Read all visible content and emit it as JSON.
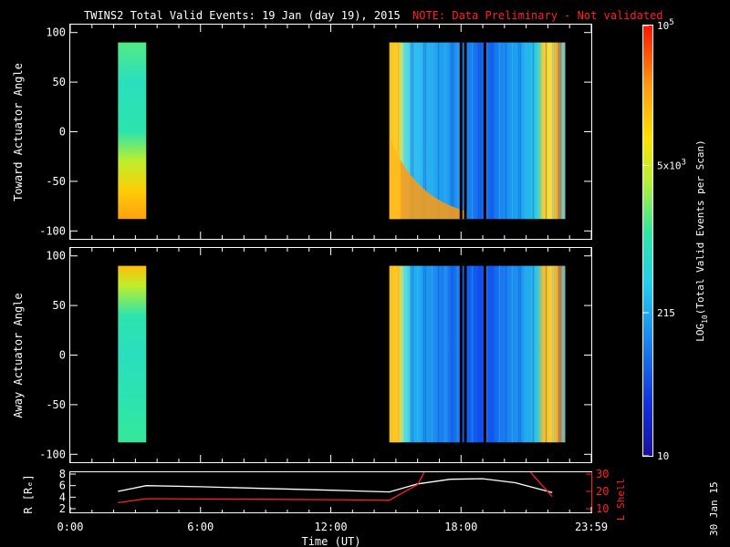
{
  "title": {
    "main": "TWINS2  Total Valid Events: 19 Jan (day  19), 2015",
    "note": "NOTE: Data Preliminary - Not validated"
  },
  "chart_data": [
    {
      "type": "heatmap",
      "panel": "top",
      "ylabel": "Toward Actuator Angle",
      "ylim": [
        -108,
        108
      ],
      "yticks": [
        {
          "v": 100,
          "label": "100"
        },
        {
          "v": 50,
          "label": "50"
        },
        {
          "v": 0,
          "label": "0"
        },
        {
          "v": -50,
          "label": "-50"
        },
        {
          "v": -100,
          "label": "-100"
        }
      ],
      "xlim": [
        0,
        24
      ],
      "angle_range": [
        -88,
        90
      ],
      "data_blocks": [
        {
          "start_hour": 2.2,
          "end_hour": 3.5,
          "profile": [
            {
              "a": 90,
              "v": 3.2
            },
            {
              "a": 50,
              "v": 2.9
            },
            {
              "a": 0,
              "v": 3.0
            },
            {
              "a": -30,
              "v": 3.6
            },
            {
              "a": -60,
              "v": 4.1
            },
            {
              "a": -88,
              "v": 4.4
            }
          ]
        },
        {
          "start_hour": 14.7,
          "end_hour": 22.8
        }
      ],
      "gaps_hours": [
        18.0,
        18.2,
        19.1
      ]
    },
    {
      "type": "heatmap",
      "panel": "middle",
      "ylabel": "Away Actuator Angle",
      "ylim": [
        -108,
        108
      ],
      "yticks": [
        {
          "v": 100,
          "label": "100"
        },
        {
          "v": 50,
          "label": "50"
        },
        {
          "v": 0,
          "label": "0"
        },
        {
          "v": -50,
          "label": "-50"
        },
        {
          "v": -100,
          "label": "-100"
        }
      ],
      "xlim": [
        0,
        24
      ],
      "angle_range": [
        -88,
        90
      ],
      "data_blocks": [
        {
          "start_hour": 2.2,
          "end_hour": 3.5,
          "profile": [
            {
              "a": 90,
              "v": 4.2
            },
            {
              "a": 70,
              "v": 3.6
            },
            {
              "a": 40,
              "v": 3.0
            },
            {
              "a": 0,
              "v": 2.9
            },
            {
              "a": -50,
              "v": 3.0
            },
            {
              "a": -88,
              "v": 3.1
            }
          ]
        },
        {
          "start_hour": 14.7,
          "end_hour": 22.8
        }
      ],
      "gaps_hours": [
        18.0,
        18.2,
        19.1
      ]
    },
    {
      "type": "line",
      "panel": "bottom",
      "ylabel": "R [Rₑ]",
      "ylabel_right": "L Shell",
      "xlabel": "Time (UT)",
      "xlim": [
        0,
        24
      ],
      "ylim": [
        2,
        8
      ],
      "ylim_right": [
        10,
        30
      ],
      "yticks": [
        "8",
        "6",
        "4",
        "2"
      ],
      "yticks_right": [
        "30",
        "20",
        "10"
      ],
      "xticks": [
        {
          "v": 0,
          "label": "0:00"
        },
        {
          "v": 6,
          "label": "6:00"
        },
        {
          "v": 12,
          "label": "12:00"
        },
        {
          "v": 18,
          "label": "18:00"
        },
        {
          "v": 24,
          "label": "23:59"
        }
      ],
      "series": [
        {
          "color": "#ffffff",
          "axis": "left",
          "x": [
            2.2,
            3.5,
            6,
            9,
            12,
            14.7,
            16,
            17.5,
            19,
            20.5,
            22.2
          ],
          "y": [
            5.0,
            6.0,
            5.8,
            5.5,
            5.2,
            4.9,
            6.3,
            7.1,
            7.2,
            6.5,
            4.8
          ]
        },
        {
          "color": "#ff2020",
          "axis": "right",
          "x": [
            2.2,
            3.5,
            6,
            9,
            12,
            14.7,
            16,
            16.3
          ],
          "y": [
            13.5,
            15.8,
            15.6,
            15.4,
            15.2,
            14.9,
            24,
            31
          ]
        },
        {
          "color": "#ff2020",
          "axis": "right",
          "x": [
            21.2,
            22.2
          ],
          "y": [
            31,
            17
          ]
        }
      ]
    }
  ],
  "colorbar": {
    "label": "LOG10(Total Valid Events per Scan)",
    "label_main": "LOG",
    "label_sub": "10",
    "label_rest": "(Total Valid  Events  per Scan)",
    "ticks": [
      {
        "v": 5.0,
        "label": "10",
        "sup": "5",
        "prefix": ""
      },
      {
        "v": 3.7,
        "label": "10",
        "sup": "3",
        "prefix": "5x"
      },
      {
        "v": 2.33,
        "label": "215",
        "sup": "",
        "prefix": ""
      },
      {
        "v": 1.0,
        "label": "10",
        "sup": "",
        "prefix": ""
      }
    ],
    "range": [
      1.0,
      5.0
    ]
  },
  "footer_date": "30 Jan 15"
}
